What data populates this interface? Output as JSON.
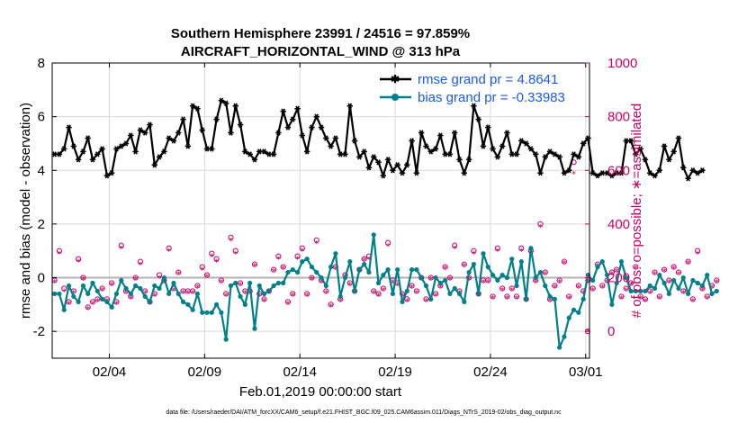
{
  "chart_data": {
    "type": "line",
    "title_line1": "Southern Hemisphere 23991 / 24516 = 97.859%",
    "title_line2": "AIRCRAFT_HORIZONTAL_WIND @ 313 hPa",
    "xlabel": "Feb.01,2019 00:00:00 start",
    "ylabel_left": "rmse and bias (model - observation)",
    "ylabel_right": "# of obs: o=possible; ∗=assimilated",
    "ylim_left": [
      -3,
      8
    ],
    "ylim_right": [
      -100,
      1000
    ],
    "yticks_left": [
      "-2",
      "0",
      "2",
      "4",
      "6",
      "8"
    ],
    "yticks_right": [
      "0",
      "200",
      "400",
      "600",
      "800",
      "1000"
    ],
    "xlim": [
      1,
      29.2
    ],
    "xticks": [
      {
        "x": 4,
        "label": "02/04"
      },
      {
        "x": 9,
        "label": "02/09"
      },
      {
        "x": 14,
        "label": "02/14"
      },
      {
        "x": 19,
        "label": "02/19"
      },
      {
        "x": 24,
        "label": "02/24"
      },
      {
        "x": 29,
        "label": "03/01"
      }
    ],
    "grid": true,
    "legend_position": "top-right",
    "x_start_day": 1.125,
    "x_step_days": 0.25,
    "series": [
      {
        "name": "rmse grand pr = 4.8641",
        "color": "#000000",
        "marker": "star",
        "values": [
          4.6,
          4.6,
          4.8,
          5.6,
          4.9,
          4.4,
          4.7,
          5.2,
          4.4,
          4.6,
          4.8,
          3.8,
          3.9,
          4.8,
          4.9,
          5.0,
          5.3,
          4.7,
          5.5,
          5.4,
          5.7,
          4.2,
          4.5,
          4.7,
          5.2,
          5.1,
          5.4,
          5.9,
          4.9,
          6.4,
          6.3,
          5.5,
          4.8,
          4.8,
          5.9,
          6.6,
          6.5,
          5.4,
          6.4,
          5.7,
          4.7,
          4.6,
          4.4,
          4.7,
          4.7,
          4.6,
          4.6,
          5.4,
          6.2,
          5.6,
          5.9,
          6.3,
          5.3,
          4.7,
          5.6,
          6.0,
          5.6,
          5.2,
          4.9,
          5.2,
          4.6,
          4.6,
          6.4,
          5.1,
          4.5,
          4.7,
          4.1,
          4.5,
          4.3,
          3.8,
          4.4,
          4.0,
          4.2,
          3.9,
          4.2,
          5.1,
          3.9,
          5.4,
          4.9,
          4.7,
          4.8,
          5.3,
          4.6,
          4.6,
          5.4,
          4.4,
          3.9,
          4.4,
          6.4,
          5.9,
          4.9,
          5.6,
          4.8,
          4.5,
          4.9,
          5.4,
          4.6,
          4.6,
          5.1,
          5.0,
          4.8,
          4.6,
          3.9,
          4.5,
          4.7,
          4.6,
          4.5,
          3.9,
          4.0,
          4.6,
          4.5,
          5.0,
          5.2,
          3.9,
          3.8,
          3.9,
          3.9,
          3.8,
          3.9,
          3.9,
          5.1,
          5.1,
          4.6,
          4.8,
          4.4,
          3.9,
          3.8,
          4.0,
          4.9,
          4.4,
          4.7,
          5.2,
          4.1,
          3.7,
          4.0,
          3.9,
          4.0
        ]
      },
      {
        "name": "bias grand pr = -0.33983",
        "color": "#00808b",
        "marker": "circle",
        "values": [
          -0.6,
          -0.6,
          -1.2,
          -0.3,
          -0.7,
          -0.9,
          -0.3,
          -0.6,
          -0.2,
          -0.5,
          -0.8,
          -0.9,
          -1.1,
          -0.6,
          -0.1,
          -0.4,
          -0.6,
          -0.3,
          -0.4,
          -0.7,
          -0.9,
          -0.3,
          -0.4,
          0.0,
          -0.6,
          -0.2,
          -0.6,
          -0.9,
          -1.0,
          -1.2,
          -0.6,
          -1.3,
          -1.3,
          -1.3,
          -1.0,
          -1.3,
          -2.3,
          -0.3,
          -0.2,
          -0.7,
          -1.0,
          -0.2,
          -1.9,
          -0.3,
          -0.6,
          -0.5,
          -0.3,
          -0.2,
          -0.2,
          0.2,
          0.3,
          0.2,
          0.6,
          0.7,
          0.4,
          0.2,
          0.0,
          -0.3,
          0.4,
          0.9,
          -0.7,
          0.0,
          0.6,
          -0.5,
          0.3,
          0.5,
          0.2,
          1.6,
          -0.2,
          0.1,
          0.3,
          -0.6,
          0.3,
          -0.9,
          -0.5,
          0.3,
          0.3,
          0.0,
          -0.3,
          -0.8,
          0.0,
          -0.2,
          -0.1,
          -0.6,
          -0.4,
          -0.6,
          -0.9,
          0.2,
          0.5,
          -0.6,
          0.9,
          0.4,
          0.1,
          -0.1,
          0.1,
          0.0,
          0.7,
          -0.3,
          0.6,
          -0.8,
          1.1,
          0.0,
          0.2,
          -0.3,
          -0.7,
          -0.8,
          -2.6,
          -2.2,
          -1.5,
          -1.2,
          -1.3,
          -0.8,
          0.1,
          -0.1,
          0.4,
          0.6,
          0.1,
          -1.0,
          -0.2,
          0.6,
          0.0,
          -0.5,
          -0.5,
          -0.5,
          -0.5,
          -0.3,
          -0.4,
          0.1,
          -0.2,
          -0.6,
          -0.1,
          -0.4,
          0.0,
          -0.6,
          -0.1,
          -0.2,
          -0.3,
          0.1,
          -0.6,
          -0.5
        ]
      },
      {
        "name": "# of obs possible",
        "color": "#cc0066",
        "marker": "o",
        "axis": "right",
        "values": [
          190,
          300,
          160,
          110,
          150,
          270,
          200,
          90,
          110,
          120,
          160,
          120,
          180,
          110,
          320,
          150,
          130,
          200,
          260,
          150,
          110,
          140,
          210,
          190,
          310,
          160,
          220,
          150,
          150,
          150,
          170,
          240,
          210,
          290,
          270,
          190,
          140,
          350,
          300,
          180,
          150,
          150,
          250,
          140,
          120,
          150,
          230,
          280,
          240,
          110,
          140,
          280,
          310,
          140,
          200,
          340,
          190,
          150,
          100,
          240,
          120,
          210,
          180,
          150,
          230,
          270,
          280,
          150,
          140,
          160,
          330,
          190,
          180,
          140,
          120,
          170,
          150,
          200,
          120,
          200,
          140,
          170,
          240,
          200,
          320,
          150,
          250,
          200,
          300,
          140,
          190,
          190,
          130,
          310,
          160,
          130,
          160,
          130,
          310,
          120,
          300,
          190,
          400,
          220,
          120,
          170,
          190,
          260,
          130,
          630,
          170,
          150,
          190,
          160,
          250,
          170,
          190,
          220,
          230,
          130,
          160,
          180,
          240,
          130,
          120,
          150,
          220,
          130,
          230,
          190,
          240,
          220,
          150,
          260,
          120,
          300,
          160,
          130,
          170,
          190
        ]
      },
      {
        "name": "# of obs assimilated",
        "color": "#cc0066",
        "marker": "*",
        "axis": "right",
        "values": [
          185,
          290,
          150,
          105,
          145,
          260,
          195,
          85,
          105,
          115,
          155,
          115,
          175,
          105,
          310,
          145,
          125,
          195,
          250,
          145,
          105,
          135,
          200,
          185,
          300,
          155,
          215,
          145,
          145,
          145,
          165,
          230,
          205,
          280,
          260,
          185,
          135,
          340,
          290,
          175,
          145,
          145,
          245,
          135,
          115,
          145,
          225,
          270,
          235,
          105,
          135,
          270,
          300,
          135,
          195,
          330,
          185,
          145,
          95,
          235,
          115,
          205,
          175,
          145,
          225,
          265,
          270,
          145,
          135,
          155,
          320,
          185,
          175,
          135,
          115,
          165,
          145,
          195,
          115,
          195,
          135,
          165,
          235,
          195,
          310,
          145,
          245,
          195,
          290,
          135,
          185,
          185,
          125,
          300,
          155,
          125,
          155,
          125,
          300,
          115,
          290,
          185,
          390,
          215,
          115,
          165,
          185,
          255,
          125,
          590,
          165,
          145,
          185,
          155,
          245,
          165,
          185,
          215,
          225,
          125,
          155,
          175,
          235,
          125,
          115,
          145,
          215,
          125,
          225,
          185,
          235,
          215,
          145,
          255,
          115,
          290,
          155,
          125,
          165,
          185
        ]
      }
    ],
    "extra_obs_points": [
      {
        "x": 29.1,
        "possible": 0,
        "assimilated": 0
      }
    ]
  },
  "footnote": "data file: /Users/raeder/DAI/ATM_forcXX/CAM6_setup/f.e21.FHIST_BGC.f09_025.CAM6assim.011/Diags_NTrS_2019-02/obs_diag_output.nc"
}
